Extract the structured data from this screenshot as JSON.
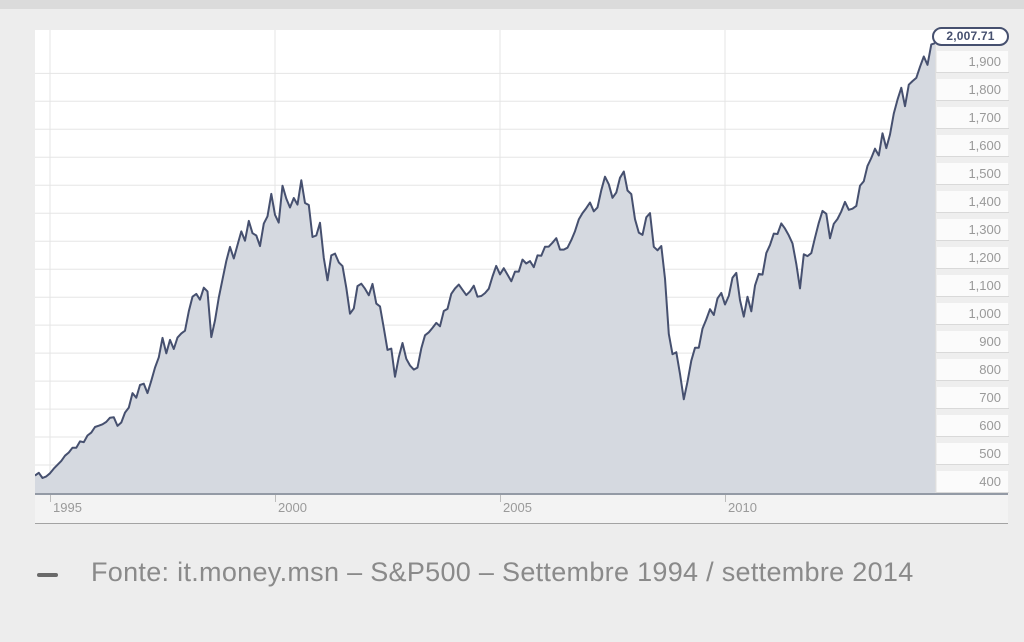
{
  "page": {
    "caption_marker": "–",
    "caption": "Fonte: it.money.msn – S&P500 – Settembre 1994 / settembre 2014"
  },
  "chart_data": {
    "type": "area",
    "series_name": "S&P500",
    "frequency": "monthly",
    "x_start": "1994-09",
    "x_end": "2014-09",
    "last_value_label": "2,007.71",
    "last_value": 2007.71,
    "ylim": [
      400,
      2055
    ],
    "y_ticks": [
      400,
      500,
      600,
      700,
      800,
      900,
      1000,
      1100,
      1200,
      1300,
      1400,
      1500,
      1600,
      1700,
      1800,
      1900
    ],
    "x_ticks": [
      {
        "label": "1995",
        "month_index": 4
      },
      {
        "label": "2000",
        "month_index": 64
      },
      {
        "label": "2005",
        "month_index": 124
      },
      {
        "label": "2010",
        "month_index": 184
      }
    ],
    "grid": true,
    "legend": "none",
    "colors": {
      "line": "#46506f",
      "fill": "#d5d9e0",
      "grid": "#e5e5e5",
      "axis_text": "#999999"
    },
    "values": [
      462.71,
      472.35,
      453.69,
      459.27,
      470.42,
      487.39,
      500.71,
      514.71,
      533.4,
      544.75,
      562.06,
      561.88,
      584.41,
      581.5,
      605.37,
      615.93,
      636.02,
      640.43,
      645.5,
      654.17,
      669.12,
      670.63,
      639.95,
      651.99,
      687.31,
      705.27,
      757.02,
      740.74,
      786.16,
      790.82,
      757.12,
      801.34,
      848.28,
      885.14,
      954.29,
      899.47,
      947.28,
      914.62,
      955.4,
      970.43,
      980.28,
      1049.34,
      1101.75,
      1111.75,
      1090.82,
      1133.84,
      1120.67,
      957.28,
      1017.01,
      1098.67,
      1163.63,
      1229.23,
      1279.64,
      1238.33,
      1286.37,
      1335.18,
      1301.84,
      1372.71,
      1328.72,
      1320.41,
      1282.71,
      1362.93,
      1388.91,
      1469.25,
      1394.46,
      1366.42,
      1498.58,
      1452.43,
      1420.6,
      1454.6,
      1430.83,
      1517.68,
      1436.51,
      1429.4,
      1314.95,
      1320.28,
      1366.01,
      1239.94,
      1160.33,
      1249.46,
      1255.82,
      1224.38,
      1211.23,
      1133.58,
      1040.94,
      1059.78,
      1139.45,
      1148.08,
      1130.2,
      1106.73,
      1147.39,
      1076.92,
      1067.14,
      989.82,
      911.62,
      916.07,
      815.28,
      885.76,
      936.31,
      879.82,
      855.7,
      841.15,
      848.18,
      916.92,
      963.59,
      974.5,
      990.31,
      1008.01,
      995.97,
      1050.71,
      1058.2,
      1111.92,
      1131.13,
      1144.94,
      1126.21,
      1107.3,
      1120.68,
      1140.84,
      1101.72,
      1104.24,
      1114.58,
      1130.2,
      1173.82,
      1211.92,
      1181.27,
      1203.6,
      1180.59,
      1156.85,
      1191.5,
      1191.33,
      1234.18,
      1220.33,
      1228.81,
      1207.01,
      1249.48,
      1248.29,
      1280.08,
      1280.66,
      1294.87,
      1310.61,
      1270.09,
      1270.2,
      1276.66,
      1303.82,
      1335.85,
      1377.94,
      1400.63,
      1418.3,
      1438.24,
      1406.82,
      1420.86,
      1482.37,
      1530.62,
      1503.35,
      1455.27,
      1473.99,
      1526.75,
      1549.38,
      1481.14,
      1468.36,
      1378.55,
      1330.63,
      1322.7,
      1385.59,
      1400.38,
      1280.0,
      1267.38,
      1282.83,
      1166.36,
      968.75,
      896.24,
      903.25,
      825.88,
      735.09,
      797.87,
      872.81,
      919.14,
      919.32,
      987.48,
      1020.62,
      1057.08,
      1036.19,
      1095.63,
      1115.1,
      1073.87,
      1104.49,
      1169.43,
      1186.69,
      1089.41,
      1030.71,
      1101.6,
      1049.33,
      1141.2,
      1183.26,
      1180.55,
      1257.64,
      1286.12,
      1327.22,
      1325.83,
      1363.61,
      1345.2,
      1320.64,
      1292.28,
      1218.89,
      1131.42,
      1253.3,
      1246.96,
      1257.6,
      1312.41,
      1365.68,
      1408.47,
      1397.91,
      1310.33,
      1362.16,
      1379.32,
      1406.58,
      1440.67,
      1412.16,
      1416.18,
      1426.19,
      1498.11,
      1514.68,
      1569.19,
      1597.57,
      1630.74,
      1606.28,
      1685.73,
      1632.97,
      1681.55,
      1756.54,
      1805.81,
      1848.36,
      1782.59,
      1859.45,
      1872.34,
      1883.95,
      1923.57,
      1960.23,
      1930.67,
      2003.37,
      2007.71
    ]
  }
}
